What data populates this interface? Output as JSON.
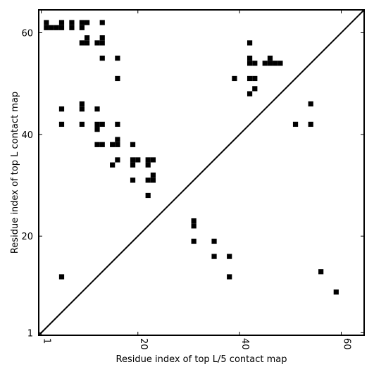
{
  "chart_data": {
    "type": "heatmap",
    "title": "",
    "xlabel": "Residue index of top L/5 contact map",
    "ylabel": "Residue index of top L contact map",
    "xlim": [
      0.5,
      64.5
    ],
    "ylim": [
      0.5,
      64.5
    ],
    "xticks": [
      1,
      20,
      40,
      60
    ],
    "yticks": [
      1,
      20,
      40,
      60
    ],
    "grid": false,
    "legend": "none",
    "cell_color": "#000000",
    "diagonal_line": true,
    "upper_points": [
      [
        2,
        62
      ],
      [
        2,
        61
      ],
      [
        3,
        61
      ],
      [
        4,
        61
      ],
      [
        5,
        61
      ],
      [
        5,
        62
      ],
      [
        7,
        61
      ],
      [
        7,
        62
      ],
      [
        9,
        62
      ],
      [
        10,
        62
      ],
      [
        9,
        61
      ],
      [
        10,
        59
      ],
      [
        9,
        58
      ],
      [
        10,
        58
      ],
      [
        12,
        58
      ],
      [
        13,
        58
      ],
      [
        13,
        59
      ],
      [
        13,
        62
      ],
      [
        13,
        55
      ],
      [
        16,
        55
      ],
      [
        16,
        51
      ],
      [
        5,
        45
      ],
      [
        5,
        42
      ],
      [
        9,
        46
      ],
      [
        9,
        45
      ],
      [
        9,
        42
      ],
      [
        12,
        45
      ],
      [
        12,
        42
      ],
      [
        13,
        42
      ],
      [
        12,
        41
      ],
      [
        16,
        42
      ],
      [
        15,
        38
      ],
      [
        16,
        38
      ],
      [
        16,
        39
      ],
      [
        12,
        38
      ],
      [
        13,
        38
      ],
      [
        16,
        35
      ],
      [
        15,
        34
      ],
      [
        19,
        38
      ],
      [
        19,
        35
      ],
      [
        19,
        34
      ],
      [
        19,
        31
      ],
      [
        20,
        35
      ],
      [
        22,
        35
      ],
      [
        22,
        34
      ],
      [
        22,
        31
      ],
      [
        23,
        35
      ],
      [
        23,
        32
      ],
      [
        23,
        31
      ],
      [
        22,
        28
      ],
      [
        39,
        51
      ],
      [
        42,
        58
      ],
      [
        42,
        55
      ],
      [
        42,
        54
      ],
      [
        42,
        51
      ],
      [
        43,
        54
      ],
      [
        43,
        51
      ],
      [
        43,
        49
      ],
      [
        42,
        48
      ],
      [
        46,
        55
      ],
      [
        45,
        54
      ],
      [
        46,
        54
      ],
      [
        47,
        54
      ],
      [
        48,
        54
      ],
      [
        51,
        42
      ],
      [
        54,
        46
      ],
      [
        54,
        42
      ]
    ],
    "lower_points": [
      [
        5,
        12
      ],
      [
        31,
        23
      ],
      [
        31,
        22
      ],
      [
        31,
        19
      ],
      [
        35,
        19
      ],
      [
        35,
        16
      ],
      [
        38,
        16
      ],
      [
        38,
        12
      ],
      [
        56,
        13
      ],
      [
        59,
        9
      ]
    ]
  }
}
